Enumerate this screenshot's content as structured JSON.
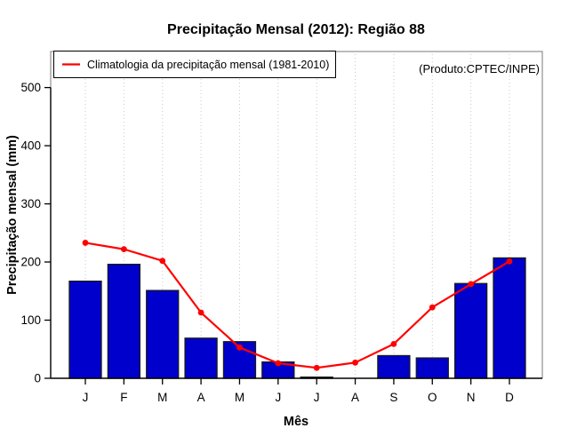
{
  "chart_data": {
    "type": "bar",
    "title": "Precipitação Mensal (2012): Região 88",
    "xlabel": "Mês",
    "ylabel": "Precipitação mensal (mm)",
    "annotation": "(Produto:CPTEC/INPE)",
    "legend_label": "Climatologia da precipitação mensal (1981-2010)",
    "legend_position": "top-left",
    "categories": [
      "J",
      "F",
      "M",
      "A",
      "M",
      "J",
      "J",
      "A",
      "S",
      "O",
      "N",
      "D"
    ],
    "yticks": [
      0,
      100,
      200,
      300,
      400,
      500
    ],
    "ylim": [
      0,
      560
    ],
    "grid": "vertical-dotted",
    "series": [
      {
        "name": "Precipitação mensal 2012",
        "type": "bar",
        "color": "#0000CD",
        "values": [
          167,
          196,
          151,
          69,
          63,
          28,
          2,
          0,
          39,
          35,
          163,
          207
        ]
      },
      {
        "name": "Climatologia da precipitação mensal (1981-2010)",
        "type": "line",
        "color": "#FF0000",
        "values": [
          233,
          222,
          202,
          113,
          53,
          26,
          18,
          27,
          59,
          122,
          162,
          201
        ]
      }
    ],
    "colors": {
      "bar_fill": "#0000CD",
      "bar_border": "#1a1a1a",
      "line": "#FF0000",
      "annotation_text": "#878787",
      "gridline": "#c8c8c8",
      "box_border": "#7a7a7a",
      "axis": "#000000"
    }
  }
}
